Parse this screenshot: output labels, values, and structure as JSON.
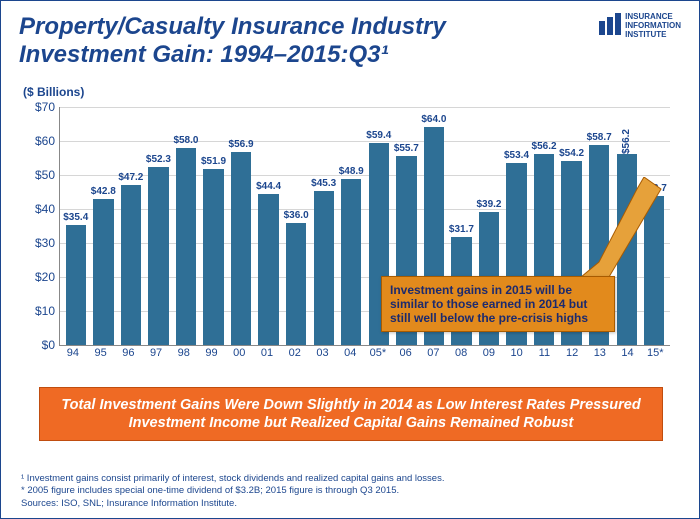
{
  "title": "Property/Casualty Insurance Industry Investment Gain: 1994–2015:Q3¹",
  "logo": {
    "lines": [
      "INSURANCE",
      "INFORMATION",
      "INSTITUTE"
    ]
  },
  "y_axis_label": "($ Billions)",
  "chart": {
    "type": "bar",
    "ylim": [
      0,
      70
    ],
    "ytick_step": 10,
    "ytick_prefix": "$",
    "bar_color": "#2f6f96",
    "grid_color": "#d6d6d6",
    "label_color": "#1c468e",
    "value_prefix": "$",
    "label_fontsize": 10,
    "categories": [
      "94",
      "95",
      "96",
      "97",
      "98",
      "99",
      "00",
      "01",
      "02",
      "03",
      "04",
      "05*",
      "06",
      "07",
      "08",
      "09",
      "10",
      "11",
      "12",
      "13",
      "14",
      "15*"
    ],
    "values": [
      35.4,
      42.8,
      47.2,
      52.3,
      58.0,
      51.9,
      56.9,
      44.4,
      36.0,
      45.3,
      48.9,
      59.4,
      55.7,
      64.0,
      31.7,
      39.2,
      53.4,
      56.2,
      54.2,
      58.7,
      56.2,
      43.7
    ],
    "rotated_label_index": 20
  },
  "callout": {
    "text": "Investment gains in 2015 will be similar to those earned in 2014 but still well below the pre-crisis highs",
    "bg_color": "#e28a1c",
    "border_color": "#a85b00",
    "text_color": "#1c2a6e",
    "pointer_target_index": 21
  },
  "banner": {
    "text": "Total Investment Gains Were Down Slightly in 2014 as Low Interest Rates Pressured Investment Income but Realized Capital Gains Remained Robust",
    "bg_color": "#ef6a24",
    "text_color": "#ffffff"
  },
  "footnotes": [
    "¹ Investment gains consist primarily of interest, stock dividends and realized capital gains and losses.",
    "* 2005 figure includes special one-time dividend of $3.2B; 2015 figure is through Q3 2015.",
    "Sources: ISO, SNL; Insurance Information Institute."
  ]
}
